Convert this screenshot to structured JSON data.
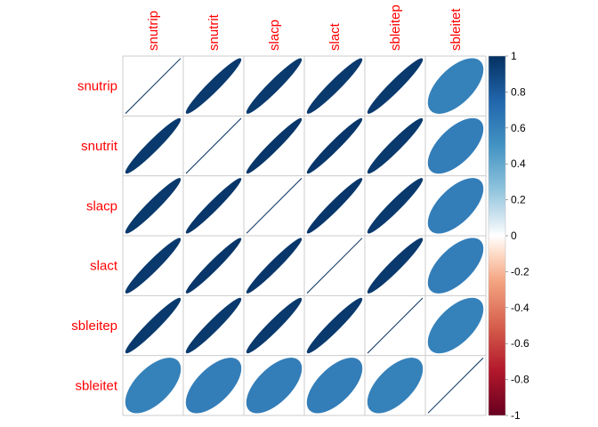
{
  "chart_data": {
    "type": "heatmap",
    "variables": [
      "snutrip",
      "snutrit",
      "slacp",
      "slact",
      "sbleitep",
      "sbleitet"
    ],
    "matrix": [
      [
        1.0,
        0.96,
        0.96,
        0.96,
        0.96,
        0.6
      ],
      [
        0.96,
        1.0,
        0.97,
        0.97,
        0.96,
        0.62
      ],
      [
        0.96,
        0.97,
        1.0,
        0.97,
        0.96,
        0.62
      ],
      [
        0.96,
        0.97,
        0.97,
        1.0,
        0.96,
        0.62
      ],
      [
        0.96,
        0.96,
        0.96,
        0.96,
        1.0,
        0.6
      ],
      [
        0.6,
        0.62,
        0.62,
        0.62,
        0.6,
        1.0
      ]
    ],
    "colorbar": {
      "ticks": [
        "1",
        "0.8",
        "0.6",
        "0.4",
        "0.2",
        "0",
        "-0.2",
        "-0.4",
        "-0.6",
        "-0.8",
        "-1"
      ],
      "range": [
        -1,
        1
      ]
    },
    "label_color": "#FF0000",
    "grid": true
  }
}
